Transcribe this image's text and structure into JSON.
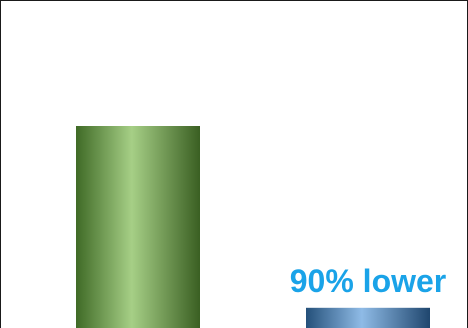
{
  "chart_data": {
    "type": "bar",
    "categories": [
      "",
      ""
    ],
    "values": [
      100,
      10
    ],
    "title": "",
    "xlabel": "",
    "ylabel": "",
    "annotations": [
      {
        "category_index": 1,
        "text": "90% lower"
      }
    ],
    "colors": {
      "bar_1": "#5a8a3c",
      "bar_2": "#2f5f8f",
      "annotation": "#1aa3e8",
      "frame": "#1a1a1a"
    },
    "grid": false,
    "legend": "none"
  }
}
